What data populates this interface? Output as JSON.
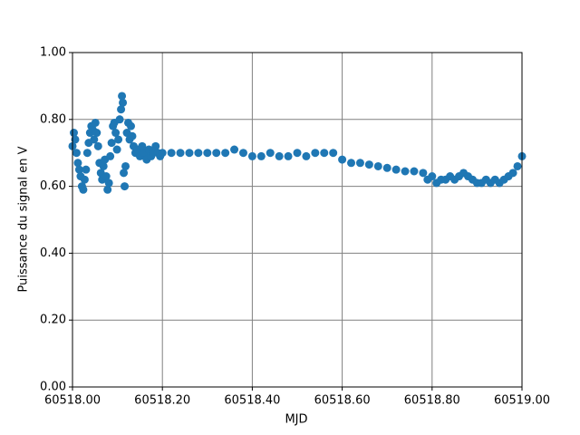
{
  "chart_data": {
    "type": "scatter",
    "xlabel": "MJD",
    "ylabel": "Puissance du signal en V",
    "color": "#1f77b4",
    "grid": true,
    "xlim": [
      60518.0,
      60519.0
    ],
    "xticks": [
      {
        "value": 60518.0,
        "label": "60518.00"
      },
      {
        "value": 60518.2,
        "label": "60518.20"
      },
      {
        "value": 60518.4,
        "label": "60518.40"
      },
      {
        "value": 60518.6,
        "label": "60518.60"
      },
      {
        "value": 60518.8,
        "label": "60518.80"
      },
      {
        "value": 60519.0,
        "label": "60519.00"
      }
    ],
    "ylim": [
      0,
      1
    ],
    "yticks": [
      {
        "value": 0,
        "label": "0.00"
      },
      {
        "value": 0.2,
        "label": "0.20"
      },
      {
        "value": 0.4,
        "label": "0.40"
      },
      {
        "value": 0.6,
        "label": "0.60"
      },
      {
        "value": 0.8,
        "label": "0.80"
      },
      {
        "value": 1.0,
        "label": "1.00"
      }
    ],
    "x": [
      60518.0,
      60518.003,
      60518.006,
      60518.009,
      60518.012,
      60518.015,
      60518.018,
      60518.021,
      60518.024,
      60518.027,
      60518.03,
      60518.033,
      60518.036,
      60518.039,
      60518.042,
      60518.045,
      60518.048,
      60518.051,
      60518.054,
      60518.057,
      60518.06,
      60518.063,
      60518.066,
      60518.069,
      60518.072,
      60518.075,
      60518.078,
      60518.081,
      60518.084,
      60518.087,
      60518.09,
      60518.093,
      60518.096,
      60518.099,
      60518.102,
      60518.105,
      60518.108,
      60518.11,
      60518.112,
      60518.114,
      60518.116,
      60518.118,
      60518.121,
      60518.124,
      60518.127,
      60518.13,
      60518.133,
      60518.136,
      60518.14,
      60518.145,
      60518.15,
      60518.155,
      60518.16,
      60518.165,
      60518.17,
      60518.175,
      60518.18,
      60518.185,
      60518.19,
      60518.195,
      60518.2,
      60518.22,
      60518.24,
      60518.26,
      60518.28,
      60518.3,
      60518.32,
      60518.34,
      60518.36,
      60518.38,
      60518.4,
      60518.42,
      60518.44,
      60518.46,
      60518.48,
      60518.5,
      60518.52,
      60518.54,
      60518.56,
      60518.58,
      60518.6,
      60518.62,
      60518.64,
      60518.66,
      60518.68,
      60518.7,
      60518.72,
      60518.74,
      60518.76,
      60518.78,
      60518.79,
      60518.8,
      60518.81,
      60518.82,
      60518.83,
      60518.84,
      60518.85,
      60518.86,
      60518.87,
      60518.88,
      60518.89,
      60518.9,
      60518.91,
      60518.92,
      60518.93,
      60518.94,
      60518.95,
      60518.96,
      60518.97,
      60518.98,
      60518.99,
      60519.0
    ],
    "values": [
      0.72,
      0.76,
      0.74,
      0.7,
      0.67,
      0.65,
      0.63,
      0.6,
      0.59,
      0.62,
      0.65,
      0.7,
      0.73,
      0.76,
      0.78,
      0.77,
      0.74,
      0.79,
      0.76,
      0.72,
      0.67,
      0.64,
      0.62,
      0.66,
      0.68,
      0.63,
      0.59,
      0.61,
      0.69,
      0.73,
      0.78,
      0.79,
      0.76,
      0.71,
      0.74,
      0.8,
      0.83,
      0.87,
      0.85,
      0.64,
      0.6,
      0.66,
      0.76,
      0.79,
      0.74,
      0.78,
      0.75,
      0.72,
      0.7,
      0.71,
      0.69,
      0.72,
      0.7,
      0.68,
      0.71,
      0.69,
      0.7,
      0.72,
      0.7,
      0.69,
      0.7,
      0.7,
      0.7,
      0.7,
      0.7,
      0.7,
      0.7,
      0.7,
      0.71,
      0.7,
      0.69,
      0.69,
      0.7,
      0.69,
      0.69,
      0.7,
      0.69,
      0.7,
      0.7,
      0.7,
      0.68,
      0.67,
      0.67,
      0.665,
      0.66,
      0.655,
      0.65,
      0.645,
      0.645,
      0.64,
      0.62,
      0.63,
      0.61,
      0.62,
      0.62,
      0.63,
      0.62,
      0.63,
      0.64,
      0.63,
      0.62,
      0.61,
      0.61,
      0.62,
      0.61,
      0.62,
      0.61,
      0.62,
      0.63,
      0.64,
      0.66,
      0.69
    ]
  }
}
